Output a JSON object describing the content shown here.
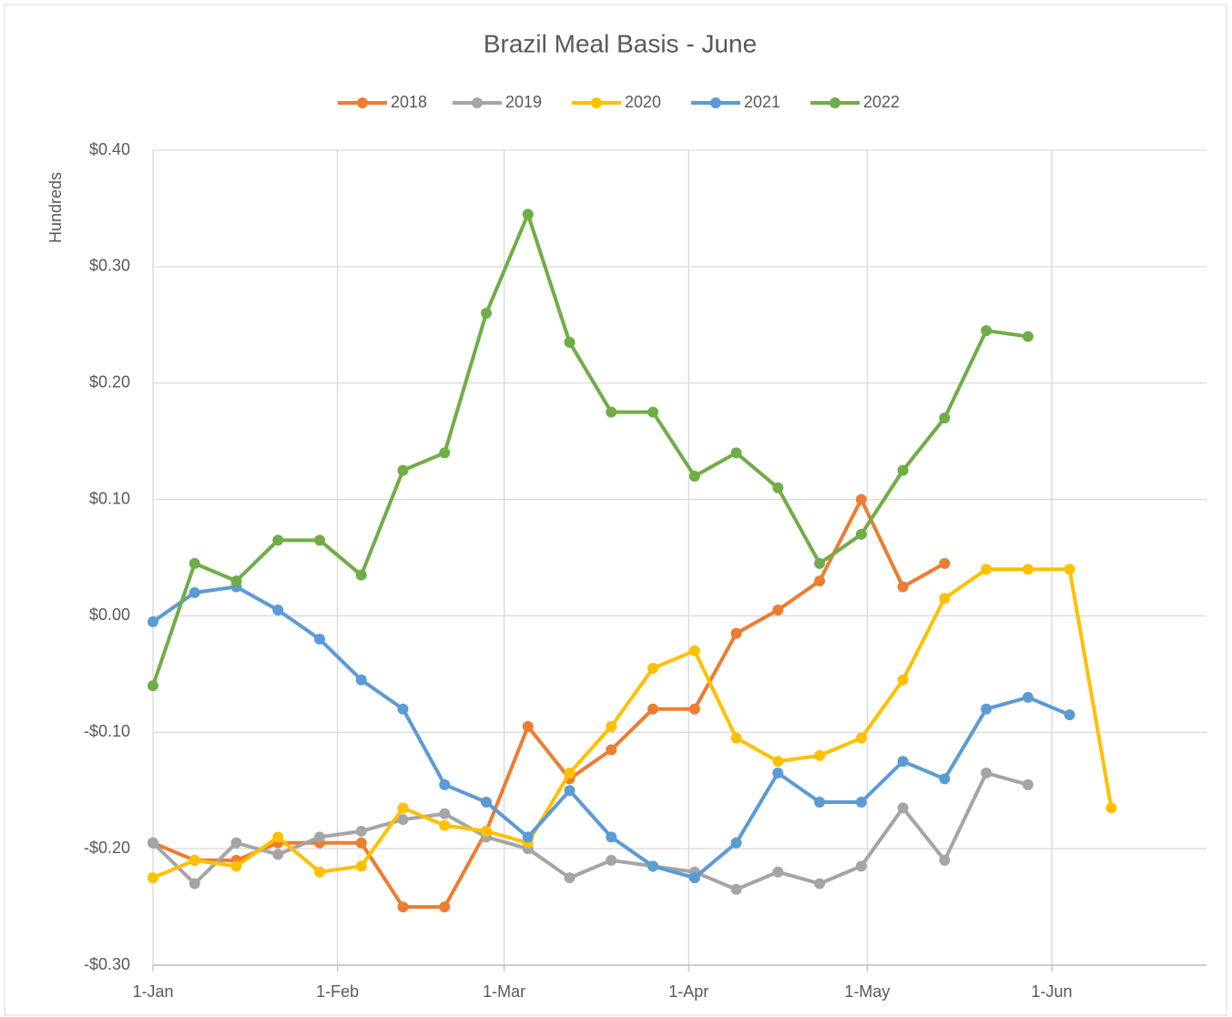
{
  "chart_data": {
    "type": "line",
    "title": "Brazil Meal Basis - June",
    "y_label": "Hundreds",
    "x": [
      0,
      7,
      14,
      21,
      28,
      35,
      42,
      49,
      56,
      63,
      70,
      77,
      84,
      91,
      98,
      105,
      112,
      119,
      126,
      133,
      140,
      147,
      154,
      161
    ],
    "xlim": [
      0,
      177
    ],
    "xticks": [
      {
        "value": 0,
        "label": "1-Jan"
      },
      {
        "value": 31,
        "label": "1-Feb"
      },
      {
        "value": 59,
        "label": "1-Mar"
      },
      {
        "value": 90,
        "label": "1-Apr"
      },
      {
        "value": 120,
        "label": "1-May"
      },
      {
        "value": 151,
        "label": "1-Jun"
      }
    ],
    "ylim": [
      -0.3,
      0.4
    ],
    "yticks": [
      {
        "value": -0.3,
        "label": "-$0.30"
      },
      {
        "value": -0.2,
        "label": "-$0.20"
      },
      {
        "value": -0.1,
        "label": "-$0.10"
      },
      {
        "value": 0,
        "label": "$0.00"
      },
      {
        "value": 0.1,
        "label": "$0.10"
      },
      {
        "value": 0.2,
        "label": "$0.20"
      },
      {
        "value": 0.3,
        "label": "$0.30"
      },
      {
        "value": 0.4,
        "label": "$0.40"
      }
    ],
    "grid": true,
    "legend": "top",
    "series": [
      {
        "name": "2018",
        "color": "#ed7d31",
        "values": [
          -0.195,
          -0.21,
          -0.21,
          -0.195,
          -0.195,
          -0.195,
          -0.25,
          -0.25,
          -0.185,
          -0.095,
          -0.14,
          -0.115,
          -0.08,
          -0.08,
          -0.015,
          0.005,
          0.03,
          0.1,
          0.025,
          0.045,
          null,
          null,
          null,
          null
        ]
      },
      {
        "name": "2019",
        "color": "#a5a5a5",
        "values": [
          -0.195,
          -0.23,
          -0.195,
          -0.205,
          -0.19,
          -0.185,
          -0.175,
          -0.17,
          -0.19,
          -0.2,
          -0.225,
          -0.21,
          -0.215,
          -0.22,
          -0.235,
          -0.22,
          -0.23,
          -0.215,
          -0.165,
          -0.21,
          -0.135,
          -0.145,
          null,
          null
        ]
      },
      {
        "name": "2020",
        "color": "#ffc000",
        "values": [
          -0.225,
          -0.21,
          -0.215,
          -0.19,
          -0.22,
          -0.215,
          -0.165,
          -0.18,
          -0.185,
          -0.195,
          -0.135,
          -0.095,
          -0.045,
          -0.03,
          -0.105,
          -0.125,
          -0.12,
          -0.105,
          -0.055,
          0.015,
          0.04,
          0.04,
          0.04,
          -0.165
        ]
      },
      {
        "name": "2021",
        "color": "#5b9bd5",
        "values": [
          -0.005,
          0.02,
          0.025,
          0.005,
          -0.02,
          -0.055,
          -0.08,
          -0.145,
          -0.16,
          -0.19,
          -0.15,
          -0.19,
          -0.215,
          -0.225,
          -0.195,
          -0.135,
          -0.16,
          -0.16,
          -0.125,
          -0.14,
          -0.08,
          -0.07,
          -0.085,
          null
        ]
      },
      {
        "name": "2022",
        "color": "#70ad47",
        "values": [
          -0.06,
          0.045,
          0.03,
          0.065,
          0.065,
          0.035,
          0.125,
          0.14,
          0.26,
          0.345,
          0.235,
          0.175,
          0.175,
          0.12,
          0.14,
          0.11,
          0.045,
          0.07,
          0.125,
          0.17,
          0.245,
          0.24,
          null,
          null
        ]
      }
    ]
  }
}
